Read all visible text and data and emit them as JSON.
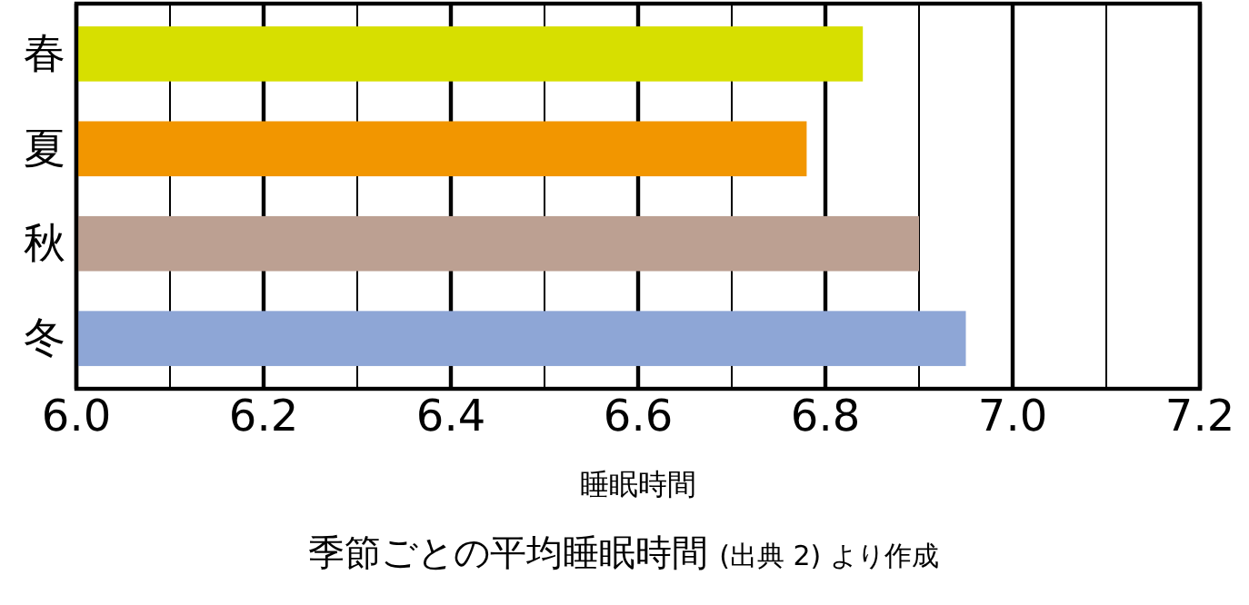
{
  "chart_data": {
    "type": "bar",
    "orientation": "horizontal",
    "title": "季節ごとの平均睡眠時間",
    "annotations": [
      "(出典 2) より作成"
    ],
    "xlabel": "睡眠時間",
    "categories": [
      "春",
      "夏",
      "秋",
      "冬"
    ],
    "values": [
      6.84,
      6.78,
      6.9,
      6.95
    ],
    "colors": [
      "#d7df00",
      "#f29600",
      "#bca092",
      "#8ea6d6"
    ],
    "xlim": [
      6.0,
      7.2
    ],
    "xticks": [
      {
        "value": 6.0,
        "label": "6.0"
      },
      {
        "value": 6.1,
        "label": null
      },
      {
        "value": 6.2,
        "label": "6.2"
      },
      {
        "value": 6.3,
        "label": null
      },
      {
        "value": 6.4,
        "label": "6.4"
      },
      {
        "value": 6.5,
        "label": null
      },
      {
        "value": 6.6,
        "label": "6.6"
      },
      {
        "value": 6.7,
        "label": null
      },
      {
        "value": 6.8,
        "label": "6.8"
      },
      {
        "value": 6.9,
        "label": null
      },
      {
        "value": 7.0,
        "label": "7.0"
      },
      {
        "value": 7.1,
        "label": null
      },
      {
        "value": 7.2,
        "label": "7.2"
      }
    ],
    "grid": "x"
  }
}
